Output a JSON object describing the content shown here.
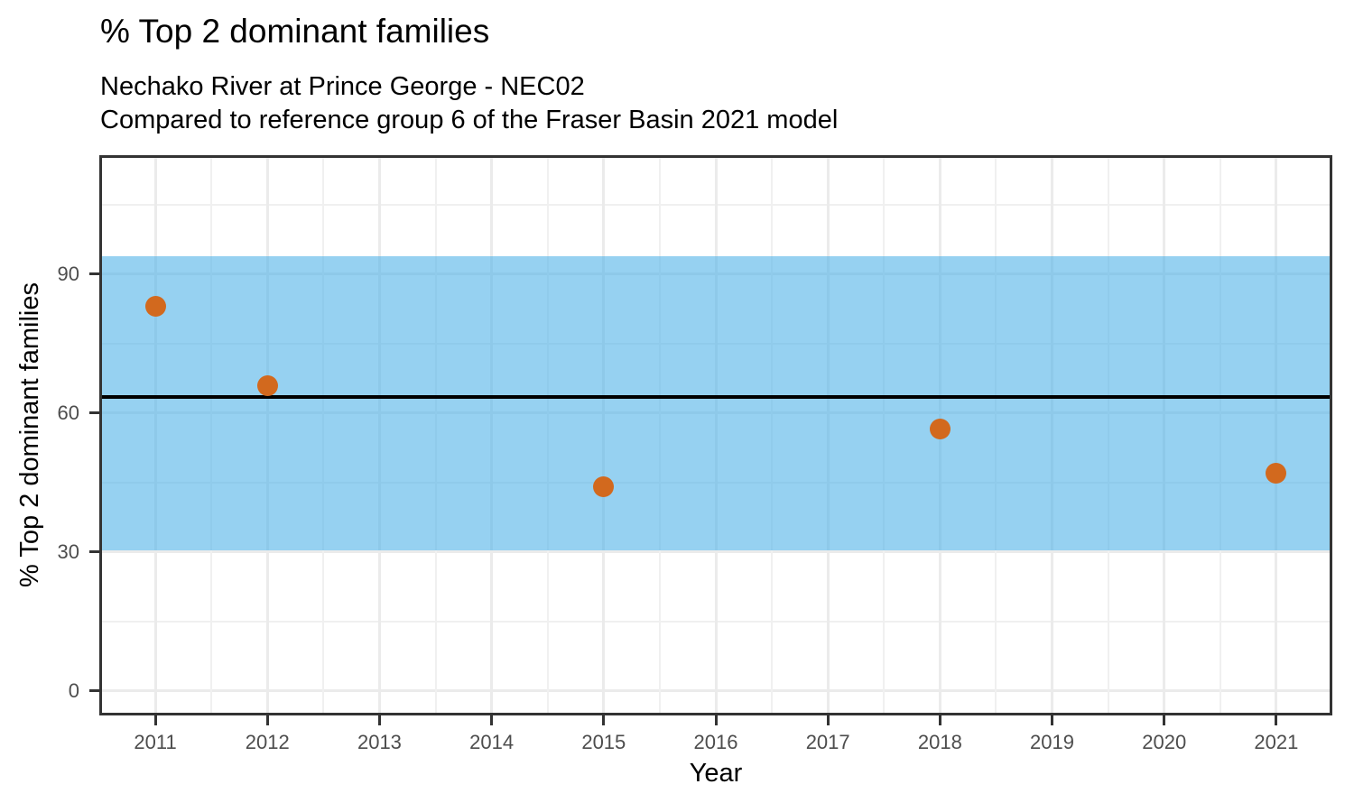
{
  "chart_data": {
    "type": "scatter",
    "title": "% Top 2 dominant families",
    "subtitle": [
      "Nechako River at Prince George - NEC02",
      "Compared to reference group 6 of the Fraser Basin 2021 model"
    ],
    "xlabel": "Year",
    "ylabel": "% Top 2 dominant families",
    "xlim": [
      2010.5,
      2021.5
    ],
    "ylim": [
      -5.3,
      115.7
    ],
    "x_major_ticks": [
      2011,
      2012,
      2013,
      2014,
      2015,
      2016,
      2017,
      2018,
      2019,
      2020,
      2021
    ],
    "x_minor_gridlines": [
      2011.5,
      2012.5,
      2013.5,
      2014.5,
      2015.5,
      2016.5,
      2017.5,
      2018.5,
      2019.5,
      2020.5
    ],
    "y_major_ticks": [
      0,
      30,
      60,
      90
    ],
    "y_minor_gridlines": [
      15,
      45,
      75,
      105
    ],
    "grid": "on",
    "legend": "none",
    "points": [
      {
        "x": 2011,
        "y": 83
      },
      {
        "x": 2012,
        "y": 66
      },
      {
        "x": 2015,
        "y": 44
      },
      {
        "x": 2018,
        "y": 56.5
      },
      {
        "x": 2021,
        "y": 47
      }
    ],
    "reference_line": 63.5,
    "reference_band": {
      "ymin": 30.4,
      "ymax": 93.9
    },
    "colors": {
      "point": "#D2691E",
      "band": "#56B4E9",
      "band_opacity": 0.62,
      "reference_line": "#000000",
      "grid_major": "#EBEBEB",
      "grid_minor": "#F0F0F0",
      "axis_text": "#4D4D4D",
      "axis_ticks": "#333333",
      "panel_border": "#333333",
      "background": "#FFFFFF",
      "title_text": "#000000"
    }
  }
}
